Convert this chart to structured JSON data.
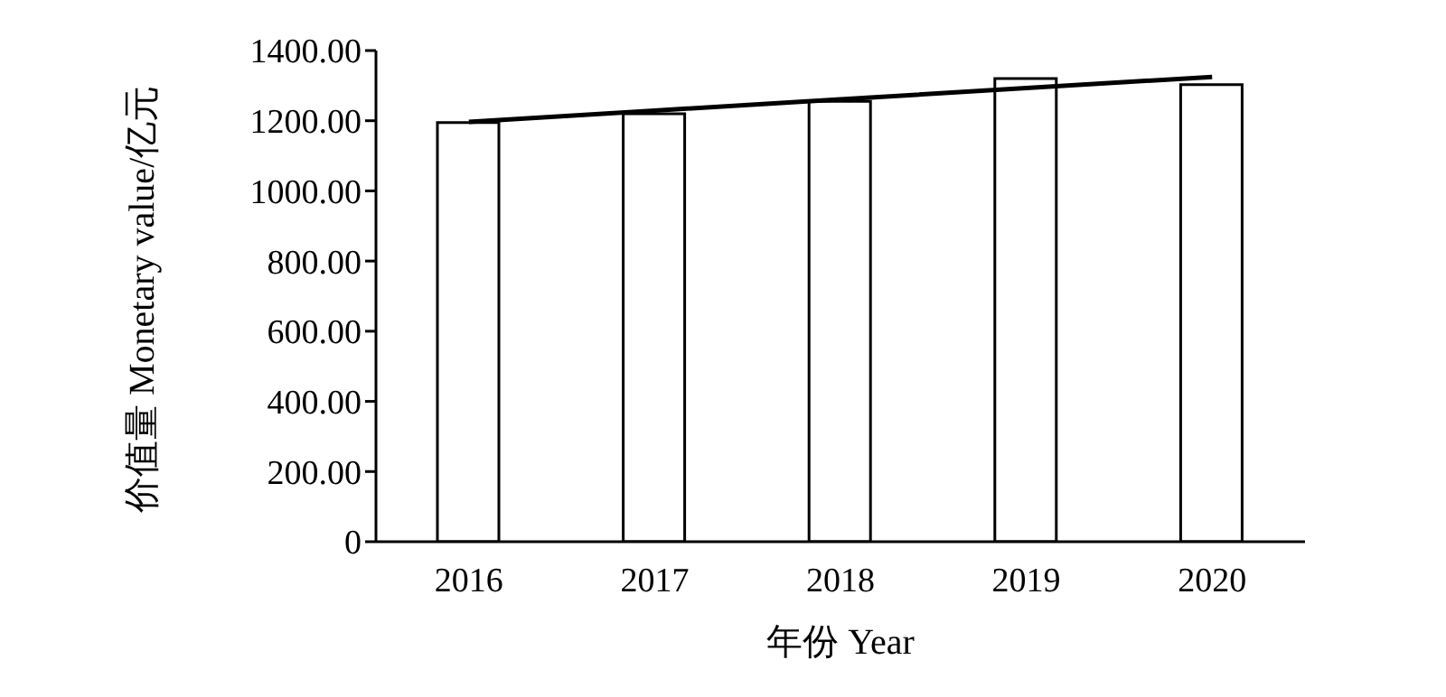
{
  "chart_data": {
    "type": "bar",
    "xlabel": "年份 Year",
    "ylabel": "价值量 Monetary value/亿元",
    "categories": [
      "2016",
      "2017",
      "2018",
      "2019",
      "2020"
    ],
    "series": [
      {
        "color": "#ffffff",
        "values": [
          1195,
          1220,
          1255,
          1320,
          1303
        ]
      },
      {
        "type": "line",
        "color": "#000000",
        "values": [
          1197,
          1229,
          1261,
          1293,
          1325
        ]
      }
    ],
    "ylim": [
      0,
      1400
    ],
    "yticks": [
      {
        "value": 0,
        "label": "0"
      },
      {
        "value": 200,
        "label": "200.00"
      },
      {
        "value": 400,
        "label": "400.00"
      },
      {
        "value": 600,
        "label": "600.00"
      },
      {
        "value": 800,
        "label": "800.00"
      },
      {
        "value": 1000,
        "label": "1000.00"
      },
      {
        "value": 1200,
        "label": "1200.00"
      },
      {
        "value": 1400,
        "label": "1400.00"
      }
    ],
    "grid": false,
    "legend": false,
    "marker": "none",
    "line_style": "solid"
  }
}
